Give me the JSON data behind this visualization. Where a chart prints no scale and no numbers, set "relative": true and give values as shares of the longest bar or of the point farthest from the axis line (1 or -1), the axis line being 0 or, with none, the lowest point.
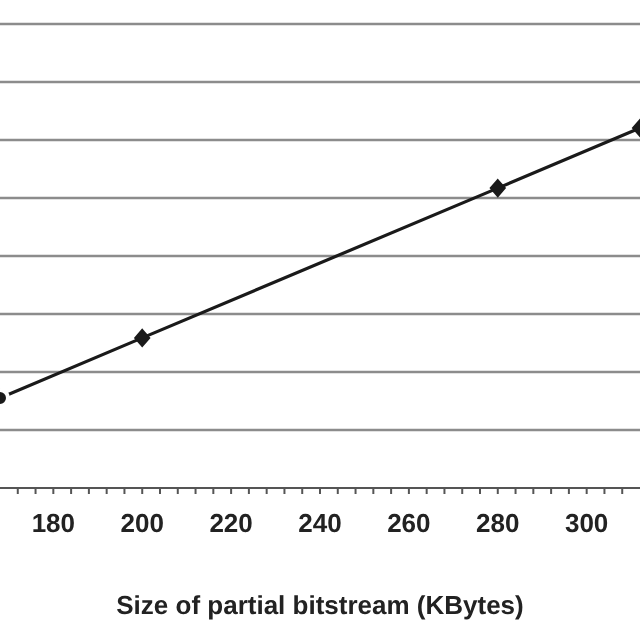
{
  "chart_data": {
    "type": "line",
    "xlabel": "Size of partial bitstream (KBytes)",
    "relative": true,
    "x": [
      168,
      200,
      280,
      312
    ],
    "series": [
      {
        "color": "#1a1a1a",
        "values": [
          0.25,
          0.417,
          0.833,
          1
        ]
      }
    ],
    "xlim": [
      168,
      312
    ],
    "xticks": [
      {
        "value": 172,
        "label": null
      },
      {
        "value": 176,
        "label": null
      },
      180,
      {
        "value": 184,
        "label": null
      },
      {
        "value": 188,
        "label": null
      },
      {
        "value": 192,
        "label": null
      },
      {
        "value": 196,
        "label": null
      },
      200,
      {
        "value": 204,
        "label": null
      },
      {
        "value": 208,
        "label": null
      },
      {
        "value": 212,
        "label": null
      },
      {
        "value": 216,
        "label": null
      },
      220,
      {
        "value": 224,
        "label": null
      },
      {
        "value": 228,
        "label": null
      },
      {
        "value": 232,
        "label": null
      },
      {
        "value": 236,
        "label": null
      },
      240,
      {
        "value": 244,
        "label": null
      },
      {
        "value": 248,
        "label": null
      },
      {
        "value": 252,
        "label": null
      },
      {
        "value": 256,
        "label": null
      },
      260,
      {
        "value": 264,
        "label": null
      },
      {
        "value": 268,
        "label": null
      },
      {
        "value": 272,
        "label": null
      },
      {
        "value": 276,
        "label": null
      },
      280,
      {
        "value": 284,
        "label": null
      },
      {
        "value": 288,
        "label": null
      },
      {
        "value": 292,
        "label": null
      },
      {
        "value": 296,
        "label": null
      },
      300,
      {
        "value": 304,
        "label": null
      },
      {
        "value": 308,
        "label": null
      }
    ],
    "grid": "y",
    "marker": "diamond",
    "line_style": "solid"
  }
}
